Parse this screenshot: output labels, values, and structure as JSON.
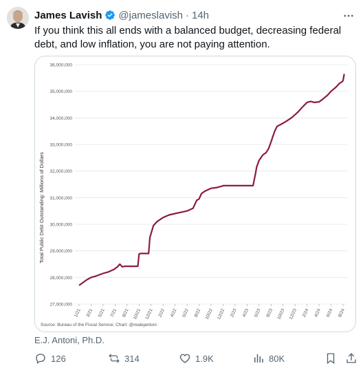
{
  "tweet": {
    "author_name": "James Lavish",
    "handle": "@jameslavish",
    "separator": "·",
    "time": "14h",
    "text": "If you think this all ends with a balanced budget, decreasing federal debt, and low inflation, you are not paying attention.",
    "verified_color": "#1d9bf0",
    "image_caption": "E.J. Antoni, Ph.D."
  },
  "actions": {
    "replies": "126",
    "reposts": "314",
    "likes": "1.9K",
    "views": "80K"
  },
  "chart_data": {
    "type": "line",
    "ylabel": "Total Public Debt Outstanding: Millions of Dollars",
    "source": "Source: Bureau of the Fiscal Service; Chart: @realejantoni",
    "ylim": [
      27000000,
      36000000
    ],
    "yticks": [
      "27,000,000",
      "28,000,000",
      "29,000,000",
      "30,000,000",
      "31,000,000",
      "32,000,000",
      "33,000,000",
      "34,000,000",
      "35,000,000",
      "36,000,000"
    ],
    "xticks": [
      "1/21",
      "3/21",
      "5/21",
      "7/21",
      "8/21",
      "10/21",
      "12/21",
      "2/22",
      "4/22",
      "6/22",
      "8/22",
      "10/22",
      "12/22",
      "2/23",
      "4/23",
      "6/23",
      "8/23",
      "10/23",
      "12/23",
      "2/24",
      "4/24",
      "6/24",
      "8/24"
    ],
    "color": "#8b1a3e",
    "grid": true,
    "series": [
      {
        "x": [
          0,
          0.3,
          0.6,
          1.0,
          1.4,
          2.0,
          2.4,
          2.9,
          3.2,
          3.4,
          3.5,
          3.55,
          3.6,
          3.8,
          4.3,
          4.6,
          4.9,
          5.0,
          5.1,
          5.3,
          5.8,
          5.9,
          6.2,
          6.5,
          7.0,
          7.5,
          8.0,
          8.5,
          9.0,
          9.5,
          9.8,
          10.0,
          10.2,
          10.5,
          11.0,
          11.5,
          11.9,
          12.0,
          12.6,
          13.0,
          13.5,
          14.0,
          14.5,
          14.7,
          14.8,
          15.0,
          15.3,
          15.6,
          15.8,
          16.0,
          16.3,
          16.5,
          16.8,
          17.2,
          17.7,
          18.2,
          18.6,
          19.0,
          19.3,
          19.6,
          20.0,
          20.3,
          20.7,
          21.0,
          21.4,
          21.7,
          21.9,
          22.0,
          22.1
        ],
        "y": [
          27700000,
          27800000,
          27900000,
          28000000,
          28050000,
          28150000,
          28200000,
          28300000,
          28400000,
          28500000,
          28450000,
          28420000,
          28400000,
          28420000,
          28420000,
          28420000,
          28420000,
          28880000,
          28900000,
          28900000,
          28900000,
          29500000,
          29950000,
          30100000,
          30250000,
          30350000,
          30400000,
          30450000,
          30500000,
          30600000,
          30900000,
          30950000,
          31150000,
          31250000,
          31350000,
          31380000,
          31430000,
          31450000,
          31450000,
          31450000,
          31450000,
          31450000,
          31450000,
          31900000,
          32150000,
          32400000,
          32600000,
          32700000,
          32850000,
          33100000,
          33500000,
          33680000,
          33750000,
          33850000,
          34000000,
          34200000,
          34400000,
          34580000,
          34620000,
          34580000,
          34600000,
          34700000,
          34850000,
          35000000,
          35150000,
          35300000,
          35350000,
          35400000,
          35650000
        ]
      }
    ]
  }
}
